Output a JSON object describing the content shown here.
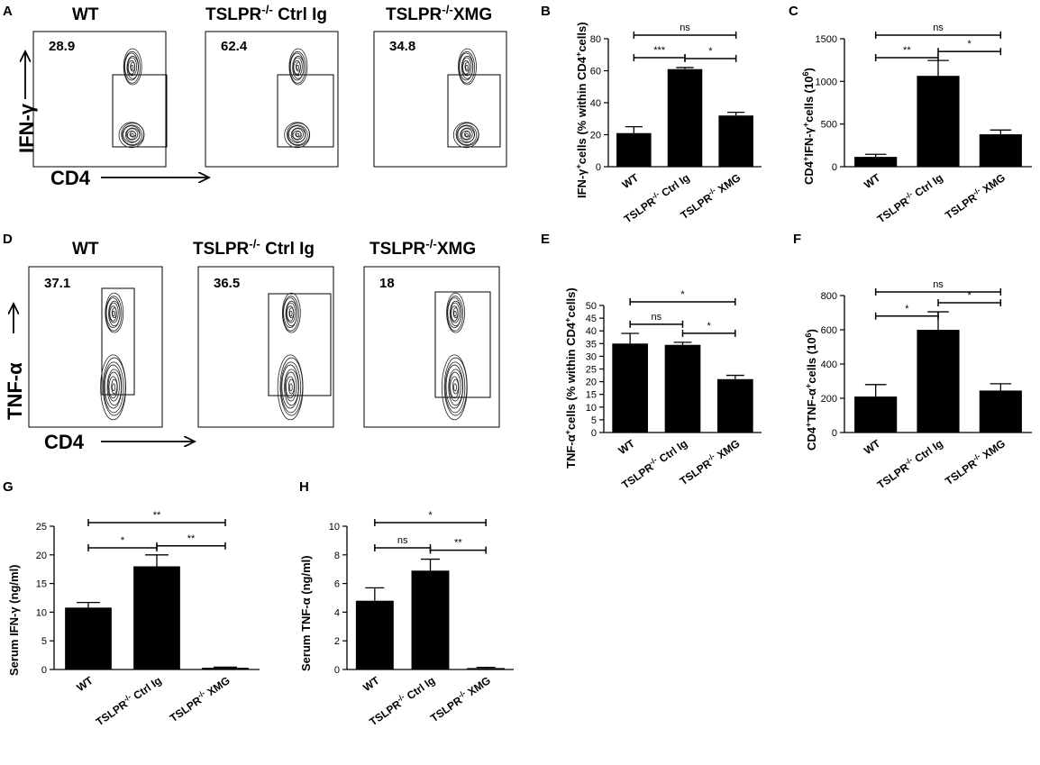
{
  "panels": {
    "A": "A",
    "B": "B",
    "C": "C",
    "D": "D",
    "E": "E",
    "F": "F",
    "G": "G",
    "H": "H"
  },
  "flow": {
    "ifn": {
      "ylabel": "IFN-γ",
      "xlabel": "CD4",
      "plots": [
        {
          "title": "WT",
          "value": "28.9"
        },
        {
          "title": "TSLPR-/- Ctrl Ig",
          "value": "62.4"
        },
        {
          "title": "TSLPR-/-XMG",
          "value": "34.8"
        }
      ]
    },
    "tnf": {
      "ylabel": "TNF-α",
      "xlabel": "CD4",
      "plots": [
        {
          "title": "WT",
          "value": "37.1"
        },
        {
          "title": "TSLPR-/- Ctrl Ig",
          "value": "36.5"
        },
        {
          "title": "TSLPR-/-XMG",
          "value": "18"
        }
      ]
    }
  },
  "chart_data": [
    {
      "panel": "B",
      "type": "bar",
      "categories": [
        "WT",
        "TSLPR-/- Ctrl Ig",
        "TSLPR-/- XMG"
      ],
      "values": [
        21,
        61,
        32
      ],
      "errors": [
        4,
        1,
        2
      ],
      "ylabel": "IFN-γ+cells (% within CD4+cells)",
      "ylim": [
        0,
        80
      ],
      "yticks": [
        0,
        20,
        40,
        60,
        80
      ],
      "significance": [
        {
          "from": 0,
          "to": 1,
          "label": "***",
          "level": 1
        },
        {
          "from": 1,
          "to": 2,
          "label": "*",
          "level": 0
        },
        {
          "from": 0,
          "to": 2,
          "label": "ns",
          "level": 2
        }
      ]
    },
    {
      "panel": "C",
      "type": "bar",
      "categories": [
        "WT",
        "TSLPR-/- Ctrl Ig",
        "TSLPR-/- XMG"
      ],
      "values": [
        115,
        1065,
        380
      ],
      "errors": [
        30,
        180,
        50
      ],
      "ylabel": "CD4+IFN-γ+cells (10^6)",
      "ylim": [
        0,
        1500
      ],
      "yticks": [
        0,
        500,
        1000,
        1500
      ],
      "significance": [
        {
          "from": 0,
          "to": 1,
          "label": "**",
          "level": 1
        },
        {
          "from": 1,
          "to": 2,
          "label": "*",
          "level": 0
        },
        {
          "from": 0,
          "to": 2,
          "label": "ns",
          "level": 2
        }
      ]
    },
    {
      "panel": "E",
      "type": "bar",
      "categories": [
        "WT",
        "TSLPR-/- Ctrl Ig",
        "TSLPR-/- XMG"
      ],
      "values": [
        35,
        34.5,
        21
      ],
      "errors": [
        4,
        1,
        1.5
      ],
      "ylabel": "TNF-α+cells (% within CD4+cells)",
      "ylim": [
        0,
        50
      ],
      "yticks": [
        0,
        5,
        10,
        15,
        20,
        25,
        30,
        35,
        40,
        45,
        50
      ],
      "significance": [
        {
          "from": 0,
          "to": 1,
          "label": "ns",
          "level": 1
        },
        {
          "from": 1,
          "to": 2,
          "label": "*",
          "level": 0
        },
        {
          "from": 0,
          "to": 2,
          "label": "*",
          "level": 2
        }
      ]
    },
    {
      "panel": "F",
      "type": "bar",
      "categories": [
        "WT",
        "TSLPR-/- Ctrl Ig",
        "TSLPR-/- XMG"
      ],
      "values": [
        210,
        600,
        245
      ],
      "errors": [
        70,
        105,
        40
      ],
      "ylabel": "CD4+TNF-α+cells (10^6)",
      "ylim": [
        0,
        800
      ],
      "yticks": [
        0,
        200,
        400,
        600,
        800
      ],
      "significance": [
        {
          "from": 0,
          "to": 1,
          "label": "*",
          "level": 1
        },
        {
          "from": 1,
          "to": 2,
          "label": "*",
          "level": 0
        },
        {
          "from": 0,
          "to": 2,
          "label": "ns",
          "level": 2
        }
      ]
    },
    {
      "panel": "G",
      "type": "bar",
      "categories": [
        "WT",
        "TSLPR-/- Ctrl Ig",
        "TSLPR-/- XMG"
      ],
      "values": [
        10.8,
        18,
        0.3
      ],
      "errors": [
        0.9,
        2,
        0.1
      ],
      "ylabel": "Serum IFN-γ (ng/ml)",
      "ylim": [
        0,
        25
      ],
      "yticks": [
        0,
        5,
        10,
        15,
        20,
        25
      ],
      "significance": [
        {
          "from": 1,
          "to": 2,
          "label": "**",
          "level": 0
        },
        {
          "from": 0,
          "to": 1,
          "label": "*",
          "level": 1
        },
        {
          "from": 0,
          "to": 2,
          "label": "**",
          "level": 2
        }
      ]
    },
    {
      "panel": "H",
      "type": "bar",
      "categories": [
        "WT",
        "TSLPR-/- Ctrl Ig",
        "TSLPR-/- XMG"
      ],
      "values": [
        4.8,
        6.9,
        0.1
      ],
      "errors": [
        0.9,
        0.8,
        0.05
      ],
      "ylabel": "Serum TNF-α (ng/ml)",
      "ylim": [
        0,
        10
      ],
      "yticks": [
        0,
        2,
        4,
        6,
        8,
        10
      ],
      "significance": [
        {
          "from": 1,
          "to": 2,
          "label": "**",
          "level": 0
        },
        {
          "from": 0,
          "to": 1,
          "label": "ns",
          "level": 1
        },
        {
          "from": 0,
          "to": 2,
          "label": "*",
          "level": 2
        }
      ]
    }
  ]
}
